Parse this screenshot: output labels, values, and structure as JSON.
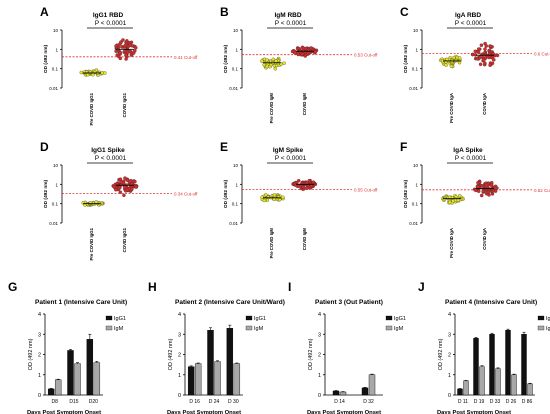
{
  "figure": {
    "scatter_panels": [
      {
        "letter": "A",
        "title": "IgG1 RBD",
        "pvalue": "P < 0.0001",
        "cutoff_label": "0.41 Cut-off"
      },
      {
        "letter": "B",
        "title": "IgM RBD",
        "pvalue": "P < 0.0001",
        "cutoff_label": "0.53 Cut-off"
      },
      {
        "letter": "C",
        "title": "IgA RBD",
        "pvalue": "P < 0.0001",
        "cutoff_label": "0.6 Cut-off"
      },
      {
        "letter": "D",
        "title": "IgG1 Spike",
        "pvalue": "P < 0.0001",
        "cutoff_label": "0.34 Cut-off"
      },
      {
        "letter": "E",
        "title": "IgM Spike",
        "pvalue": "P < 0.0001",
        "cutoff_label": "0.55 Cut-off"
      },
      {
        "letter": "F",
        "title": "IgA Spike",
        "pvalue": "P < 0.0001",
        "cutoff_label": "0.52 Cut-off"
      }
    ],
    "bar_panels": [
      {
        "letter": "G",
        "title": "Patient 1 (Intensive Care Unit)"
      },
      {
        "letter": "H",
        "title": "Patient 2 (Intensive Care Unit/Ward)"
      },
      {
        "letter": "I",
        "title": "Patient 3 (Out Patient)"
      },
      {
        "letter": "J",
        "title": "Patient 4 (Intensive Care Unit)"
      }
    ],
    "colors": {
      "pre": "#e5e52a",
      "covid": "#d42b2b",
      "cutoff": "#e03030",
      "igg1": "#111111",
      "igm": "#a8a8a8"
    }
  },
  "chart_data": [
    {
      "type": "scatter",
      "title": "IgG1 RBD",
      "ylabel": "OD (492 nm)",
      "yscale": "log",
      "ylim": [
        0.01,
        10
      ],
      "y_ticks": [
        "10",
        "1",
        "0.1",
        "0.01"
      ],
      "categories": [
        "Pre COVID IgG1",
        "COVID IgG1"
      ],
      "cutoff": 0.41,
      "groups": [
        {
          "name": "Pre COVID IgG1",
          "median": 0.06,
          "spread": [
            0.045,
            0.1
          ]
        },
        {
          "name": "COVID IgG1",
          "median": 1.0,
          "spread": [
            0.25,
            3.5
          ]
        }
      ]
    },
    {
      "type": "scatter",
      "title": "IgM RBD",
      "ylabel": "OD (492 nm)",
      "yscale": "log",
      "ylim": [
        0.01,
        10
      ],
      "y_ticks": [
        "10",
        "1",
        "0.1",
        "0.01"
      ],
      "categories": [
        "Pre COVID IgM",
        "COVID IgM"
      ],
      "cutoff": 0.53,
      "groups": [
        {
          "name": "Pre COVID IgM",
          "median": 0.2,
          "spread": [
            0.1,
            0.55
          ]
        },
        {
          "name": "COVID IgM",
          "median": 0.8,
          "spread": [
            0.4,
            1.6
          ]
        }
      ]
    },
    {
      "type": "scatter",
      "title": "IgA RBD",
      "ylabel": "OD (492 nm)",
      "yscale": "log",
      "ylim": [
        0.01,
        10
      ],
      "y_ticks": [
        "10",
        "1",
        "0.1",
        "0.01"
      ],
      "categories": [
        "Pre COVID IgA",
        "COVID IgA"
      ],
      "cutoff": 0.6,
      "groups": [
        {
          "name": "Pre COVID IgA",
          "median": 0.25,
          "spread": [
            0.12,
            0.55
          ]
        },
        {
          "name": "COVID IgA",
          "median": 0.5,
          "spread": [
            0.12,
            4.5
          ]
        }
      ]
    },
    {
      "type": "scatter",
      "title": "IgG1 Spike",
      "ylabel": "OD (492 nm)",
      "yscale": "log",
      "ylim": [
        0.01,
        10
      ],
      "y_ticks": [
        "10",
        "1",
        "0.1",
        "0.01"
      ],
      "categories": [
        "Pre COVID IgG1",
        "COVID IgG1"
      ],
      "cutoff": 0.34,
      "groups": [
        {
          "name": "Pre COVID IgG1",
          "median": 0.1,
          "spread": [
            0.085,
            0.14
          ]
        },
        {
          "name": "COVID IgG1",
          "median": 0.9,
          "spread": [
            0.15,
            3
          ]
        }
      ]
    },
    {
      "type": "scatter",
      "title": "IgM Spike",
      "ylabel": "OD (492 nm)",
      "yscale": "log",
      "ylim": [
        0.01,
        10
      ],
      "y_ticks": [
        "10",
        "1",
        "0.1",
        "0.01"
      ],
      "categories": [
        "Pre COVID IgM",
        "COVID IgM"
      ],
      "cutoff": 0.55,
      "groups": [
        {
          "name": "Pre COVID IgM",
          "median": 0.2,
          "spread": [
            0.12,
            0.4
          ]
        },
        {
          "name": "COVID IgM",
          "median": 1.0,
          "spread": [
            0.5,
            2
          ]
        }
      ]
    },
    {
      "type": "scatter",
      "title": "IgA Spike",
      "ylabel": "OD (492 nm)",
      "yscale": "log",
      "ylim": [
        0.01,
        10
      ],
      "y_ticks": [
        "10",
        "1",
        "0.1",
        "0.01"
      ],
      "categories": [
        "Pre COVID IgA",
        "COVID IgA"
      ],
      "cutoff": 0.52,
      "groups": [
        {
          "name": "Pre COVID IgA",
          "median": 0.18,
          "spread": [
            0.09,
            0.35
          ]
        },
        {
          "name": "COVID IgA",
          "median": 0.6,
          "spread": [
            0.2,
            2.5
          ]
        }
      ]
    },
    {
      "type": "bar",
      "title": "Patient 1 (Intensive Care Unit)",
      "xlabel": "Days Post Symptom Onset",
      "ylabel": "OD (492 nm)",
      "ylim": [
        0,
        4
      ],
      "categories": [
        "D8",
        "D15",
        "D20"
      ],
      "series": [
        {
          "name": "IgG1",
          "values": [
            0.3,
            2.2,
            2.75
          ],
          "errors": [
            0.03,
            0.05,
            0.25
          ]
        },
        {
          "name": "IgM",
          "values": [
            0.75,
            1.55,
            1.6
          ],
          "errors": [
            0.03,
            0.05,
            0.06
          ]
        }
      ]
    },
    {
      "type": "bar",
      "title": "Patient 2 (Intensive Care Unit/Ward)",
      "xlabel": "Days Post Symptom Onset",
      "ylabel": "OD (492 nm)",
      "ylim": [
        0,
        4
      ],
      "categories": [
        "D 16",
        "D 24",
        "D 30"
      ],
      "series": [
        {
          "name": "IgG1",
          "values": [
            1.4,
            3.2,
            3.3
          ],
          "errors": [
            0.04,
            0.12,
            0.15
          ]
        },
        {
          "name": "IgM",
          "values": [
            1.55,
            1.65,
            1.55
          ],
          "errors": [
            0.03,
            0.04,
            0.03
          ]
        }
      ]
    },
    {
      "type": "bar",
      "title": "Patient 3 (Out Patient)",
      "xlabel": "Days Post Symptom Onset",
      "ylabel": "OD (492 nm)",
      "ylim": [
        0,
        4
      ],
      "categories": [
        "D 14",
        "D 32"
      ],
      "series": [
        {
          "name": "IgG1",
          "values": [
            0.2,
            0.35
          ],
          "errors": [
            0.02,
            0.03
          ]
        },
        {
          "name": "IgM",
          "values": [
            0.15,
            1.0
          ],
          "errors": [
            0.02,
            0.03
          ]
        }
      ]
    },
    {
      "type": "bar",
      "title": "Patient 4 (Intensive Care Unit)",
      "xlabel": "Days Post Symptom Onset",
      "ylabel": "OD (492 nm)",
      "ylim": [
        0,
        4
      ],
      "categories": [
        "D 11",
        "D 19",
        "D 33",
        "D 26",
        "D 86"
      ],
      "series": [
        {
          "name": "IgG1",
          "values": [
            0.3,
            2.8,
            3.0,
            3.2,
            3.0
          ],
          "errors": [
            0.02,
            0.05,
            0.05,
            0.05,
            0.1
          ]
        },
        {
          "name": "IgM",
          "values": [
            0.7,
            1.4,
            1.3,
            1.0,
            0.55
          ],
          "errors": [
            0.02,
            0.05,
            0.04,
            0.03,
            0.03
          ]
        }
      ]
    }
  ]
}
